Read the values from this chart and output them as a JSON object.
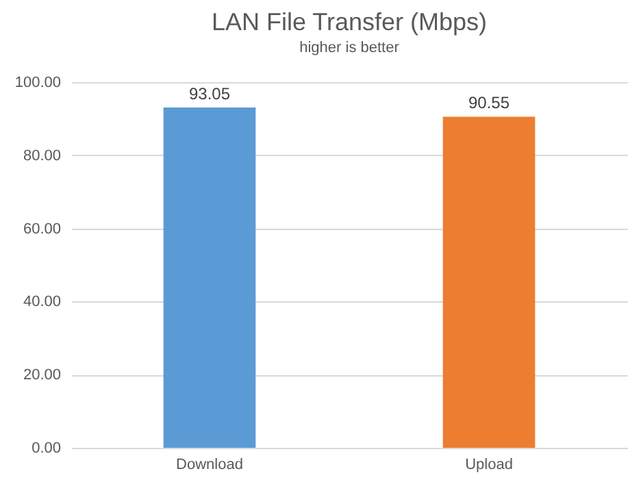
{
  "chart_data": {
    "type": "bar",
    "title": "LAN File Transfer (Mbps)",
    "subtitle": "higher is better",
    "categories": [
      "Download",
      "Upload"
    ],
    "values": [
      93.05,
      90.55
    ],
    "colors": [
      "#5b9bd5",
      "#ed7d31"
    ],
    "ylim": [
      0,
      100
    ],
    "yticks": [
      {
        "value": 0,
        "label": "0.00"
      },
      {
        "value": 20,
        "label": "20.00"
      },
      {
        "value": 40,
        "label": "40.00"
      },
      {
        "value": 60,
        "label": "60.00"
      },
      {
        "value": 80,
        "label": "80.00"
      },
      {
        "value": 100,
        "label": "100.00"
      }
    ],
    "grid": "y",
    "data_labels": true
  }
}
